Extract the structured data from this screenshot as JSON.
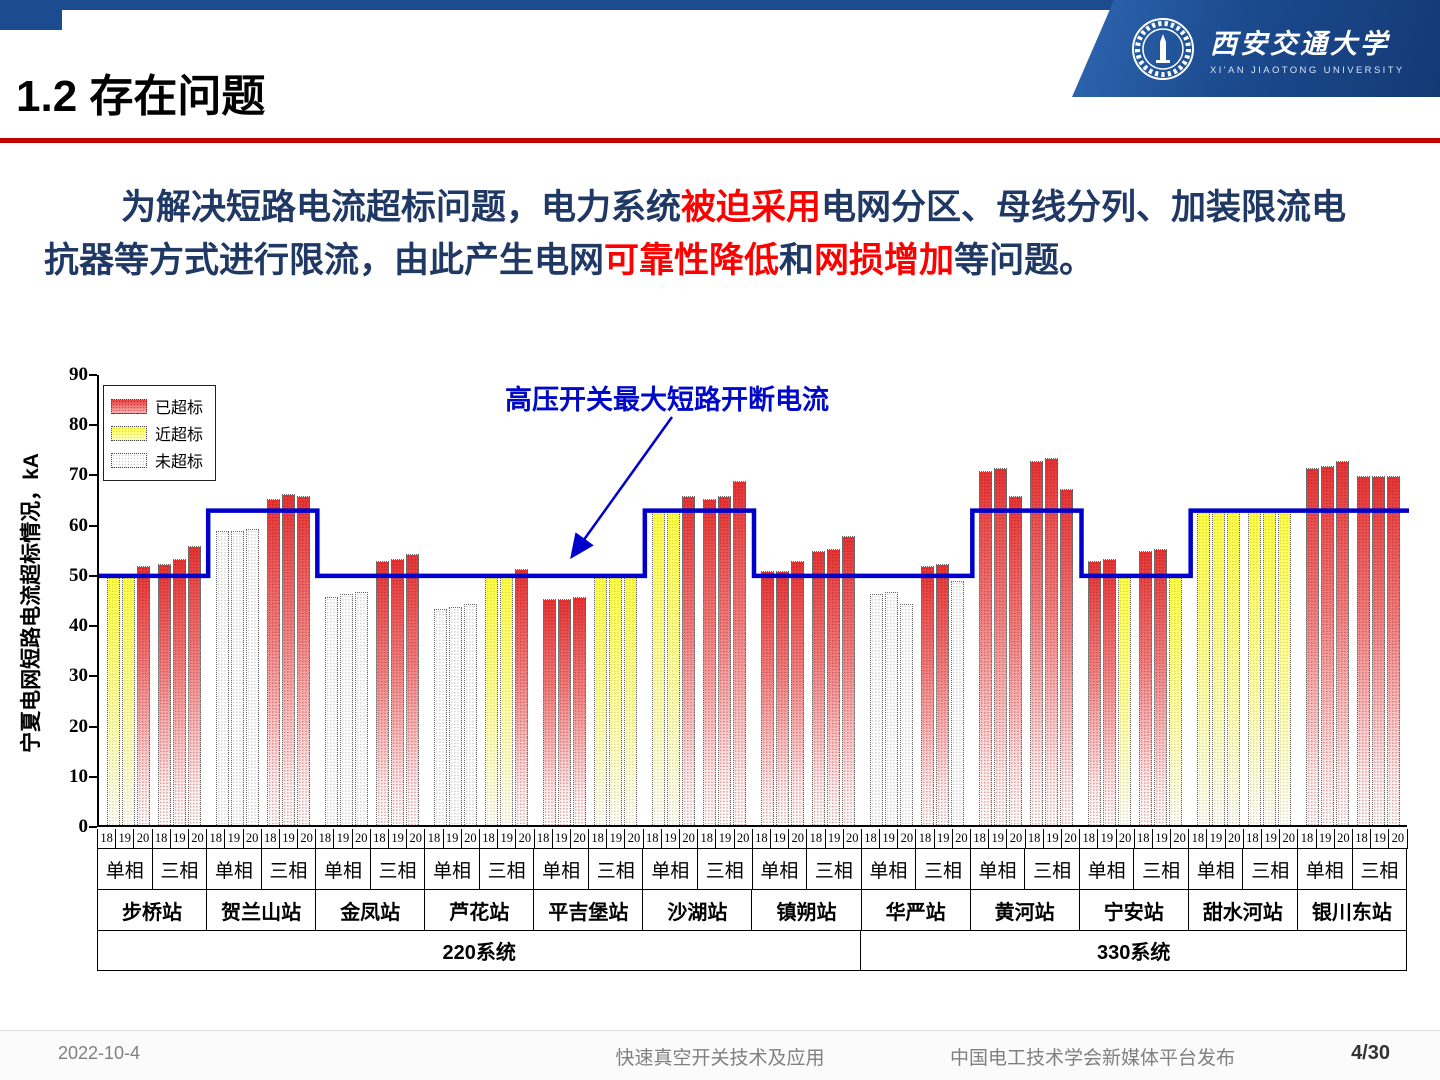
{
  "slide": {
    "title": "1.2 存在问题"
  },
  "logo": {
    "cn": "西安交通大学",
    "en": "XI'AN JIAOTONG UNIVERSITY"
  },
  "paragraph": {
    "segments": [
      {
        "text": "为解决短路电流超标问题，电力系统",
        "red": false
      },
      {
        "text": "被迫采用",
        "red": true
      },
      {
        "text": "电网分区、母线分列、加装限流电",
        "red": false,
        "br": true
      },
      {
        "text": "抗器等方式进行限流，由此产生电网",
        "red": false
      },
      {
        "text": "可靠性降低",
        "red": true
      },
      {
        "text": "和",
        "red": false
      },
      {
        "text": "网损增加",
        "red": true
      },
      {
        "text": "等问题。",
        "red": false
      }
    ]
  },
  "footer": {
    "date": "2022-10-4",
    "center": "快速真空开关技术及应用",
    "right": "中国电工技术学会新媒体平台发布",
    "page": "4/30"
  },
  "chart_data": {
    "type": "bar",
    "ylabel": "宁夏电网短路电流超标情况，kA",
    "ylim": [
      0,
      90
    ],
    "ytick_step": 10,
    "grid": false,
    "annotation": "高压开关最大短路开断电流",
    "limit_line": {
      "color": "#0000cc",
      "meaning": "高压开关最大短路开断电流"
    },
    "years": [
      "18",
      "19",
      "20"
    ],
    "phases": [
      "单相",
      "三相"
    ],
    "legend": [
      {
        "label": "已超标",
        "status": "over",
        "color": "#e83c3c"
      },
      {
        "label": "近超标",
        "status": "near",
        "color": "#ffff55"
      },
      {
        "label": "未超标",
        "status": "ok",
        "color": "#ffffff"
      }
    ],
    "systems": [
      {
        "label": "220系统",
        "station_count": 7
      },
      {
        "label": "330系统",
        "station_count": 5
      }
    ],
    "stations": [
      {
        "name": "步桥站",
        "system": "220",
        "limit": 50,
        "bars": [
          [
            49.5,
            "near"
          ],
          [
            49.5,
            "near"
          ],
          [
            51.5,
            "over"
          ],
          [
            52,
            "over"
          ],
          [
            53,
            "over"
          ],
          [
            55.5,
            "over"
          ]
        ]
      },
      {
        "name": "贺兰山站",
        "system": "220",
        "limit": 63,
        "bars": [
          [
            58.5,
            "ok"
          ],
          [
            58.5,
            "ok"
          ],
          [
            59,
            "ok"
          ],
          [
            65,
            "over"
          ],
          [
            66,
            "over"
          ],
          [
            65.5,
            "over"
          ]
        ]
      },
      {
        "name": "金凤站",
        "system": "220",
        "limit": 50,
        "bars": [
          [
            45.5,
            "ok"
          ],
          [
            46,
            "ok"
          ],
          [
            46.5,
            "ok"
          ],
          [
            52.5,
            "over"
          ],
          [
            53,
            "over"
          ],
          [
            54,
            "over"
          ]
        ]
      },
      {
        "name": "芦花站",
        "system": "220",
        "limit": 50,
        "bars": [
          [
            43,
            "ok"
          ],
          [
            43.5,
            "ok"
          ],
          [
            44,
            "ok"
          ],
          [
            49.5,
            "near"
          ],
          [
            50,
            "near"
          ],
          [
            51,
            "over"
          ]
        ]
      },
      {
        "name": "平吉堡站",
        "system": "220",
        "limit": 50,
        "bars": [
          [
            45,
            "over"
          ],
          [
            45,
            "over"
          ],
          [
            45.5,
            "over"
          ],
          [
            49.5,
            "near"
          ],
          [
            49.5,
            "near"
          ],
          [
            50,
            "near"
          ]
        ]
      },
      {
        "name": "沙湖站",
        "system": "220",
        "limit": 63,
        "bars": [
          [
            63,
            "near"
          ],
          [
            63,
            "near"
          ],
          [
            65.5,
            "over"
          ],
          [
            65,
            "over"
          ],
          [
            65.5,
            "over"
          ],
          [
            68.5,
            "over"
          ]
        ]
      },
      {
        "name": "镇朔站",
        "system": "220",
        "limit": 50,
        "bars": [
          [
            50.5,
            "over"
          ],
          [
            50.5,
            "over"
          ],
          [
            52.5,
            "over"
          ],
          [
            54.5,
            "over"
          ],
          [
            55,
            "over"
          ],
          [
            57.5,
            "over"
          ]
        ]
      },
      {
        "name": "华严站",
        "system": "330",
        "limit": 50,
        "bars": [
          [
            46,
            "ok"
          ],
          [
            46.5,
            "ok"
          ],
          [
            44,
            "ok"
          ],
          [
            51.5,
            "over"
          ],
          [
            52,
            "over"
          ],
          [
            48.5,
            "ok"
          ]
        ]
      },
      {
        "name": "黄河站",
        "system": "330",
        "limit": 63,
        "bars": [
          [
            70.5,
            "over"
          ],
          [
            71,
            "over"
          ],
          [
            65.5,
            "over"
          ],
          [
            72.5,
            "over"
          ],
          [
            73,
            "over"
          ],
          [
            67,
            "over"
          ]
        ]
      },
      {
        "name": "宁安站",
        "system": "330",
        "limit": 50,
        "bars": [
          [
            52.5,
            "over"
          ],
          [
            53,
            "over"
          ],
          [
            49.5,
            "near"
          ],
          [
            54.5,
            "over"
          ],
          [
            55,
            "over"
          ],
          [
            49.5,
            "near"
          ]
        ]
      },
      {
        "name": "甜水河站",
        "system": "330",
        "limit": 63,
        "bars": [
          [
            62.5,
            "near"
          ],
          [
            62.5,
            "near"
          ],
          [
            62.5,
            "near"
          ],
          [
            62.5,
            "near"
          ],
          [
            62.5,
            "near"
          ],
          [
            63,
            "near"
          ]
        ]
      },
      {
        "name": "银川东站",
        "system": "330",
        "limit": 63,
        "bars": [
          [
            71,
            "over"
          ],
          [
            71.5,
            "over"
          ],
          [
            72.5,
            "over"
          ],
          [
            69.5,
            "over"
          ],
          [
            69.5,
            "over"
          ],
          [
            69.5,
            "over"
          ]
        ]
      }
    ]
  }
}
